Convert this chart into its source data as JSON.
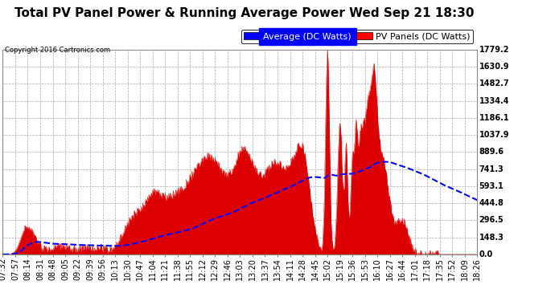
{
  "title": "Total PV Panel Power & Running Average Power Wed Sep 21 18:30",
  "copyright": "Copyright 2016 Cartronics.com",
  "legend_avg": "Average (DC Watts)",
  "legend_pv": "PV Panels (DC Watts)",
  "yticks": [
    0.0,
    148.3,
    296.5,
    444.8,
    593.1,
    741.3,
    889.6,
    1037.9,
    1186.1,
    1334.4,
    1482.7,
    1630.9,
    1779.2
  ],
  "ymax": 1779.2,
  "bg_color": "#ffffff",
  "plot_bg_color": "#ffffff",
  "grid_color": "#aaaaaa",
  "pv_color": "#dd0000",
  "avg_color": "#0000ff",
  "xtick_labels": [
    "07:32",
    "07:57",
    "08:14",
    "08:31",
    "08:48",
    "09:05",
    "09:22",
    "09:39",
    "09:56",
    "10:13",
    "10:30",
    "10:47",
    "11:04",
    "11:21",
    "11:38",
    "11:55",
    "12:12",
    "12:29",
    "12:46",
    "13:03",
    "13:20",
    "13:37",
    "13:54",
    "14:11",
    "14:28",
    "14:45",
    "15:02",
    "15:19",
    "15:36",
    "15:53",
    "16:10",
    "16:27",
    "16:44",
    "17:01",
    "17:18",
    "17:35",
    "17:52",
    "18:09",
    "18:26"
  ],
  "title_fontsize": 11,
  "tick_fontsize": 7,
  "legend_fontsize": 8
}
